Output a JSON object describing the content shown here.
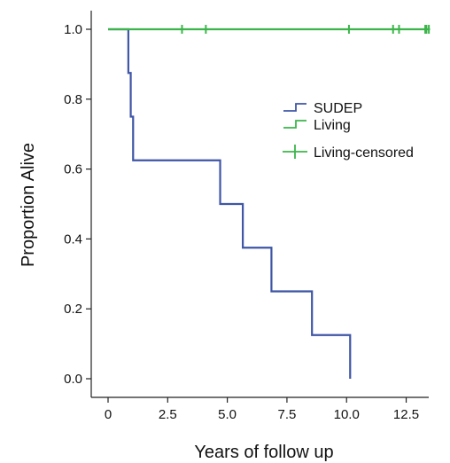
{
  "chart_data": {
    "type": "line",
    "step": true,
    "xlabel": "Years of follow up",
    "ylabel": "Proportion Alive",
    "xlim": [
      0,
      14.2
    ],
    "ylim": [
      -0.05,
      1.05
    ],
    "x_ticks": [
      0,
      2.5,
      5,
      7.5,
      10,
      12.5
    ],
    "x_tick_labels": [
      "0",
      "2.5",
      "5.0",
      "7.5",
      "10.0",
      "12.5"
    ],
    "y_ticks": [
      0,
      0.2,
      0.4,
      0.6,
      0.8,
      1.0
    ],
    "y_tick_labels": [
      "0.0",
      "0.2",
      "0.4",
      "0.6",
      "0.8",
      "1.0"
    ],
    "grid": false,
    "legend_position": "right",
    "series": [
      {
        "name": "SUDEP",
        "color": "#3F56A6",
        "x": [
          0,
          0.85,
          0.95,
          1.05,
          4.7,
          5.65,
          6.85,
          8.55,
          10.15
        ],
        "y": [
          1.0,
          0.875,
          0.75,
          0.625,
          0.5,
          0.375,
          0.25,
          0.125,
          0.0
        ]
      },
      {
        "name": "Living",
        "color": "#3BB54A",
        "x": [
          0,
          13.5
        ],
        "y": [
          1.0,
          1.0
        ]
      }
    ],
    "censored": {
      "name": "Living-censored",
      "color": "#3BB54A",
      "x": [
        3.1,
        4.1,
        10.1,
        11.95,
        12.2,
        13.3,
        13.35,
        13.45
      ],
      "y": [
        1.0,
        1.0,
        1.0,
        1.0,
        1.0,
        1.0,
        1.0,
        1.0
      ]
    },
    "legend": [
      "SUDEP",
      "Living",
      "Living-censored"
    ]
  }
}
